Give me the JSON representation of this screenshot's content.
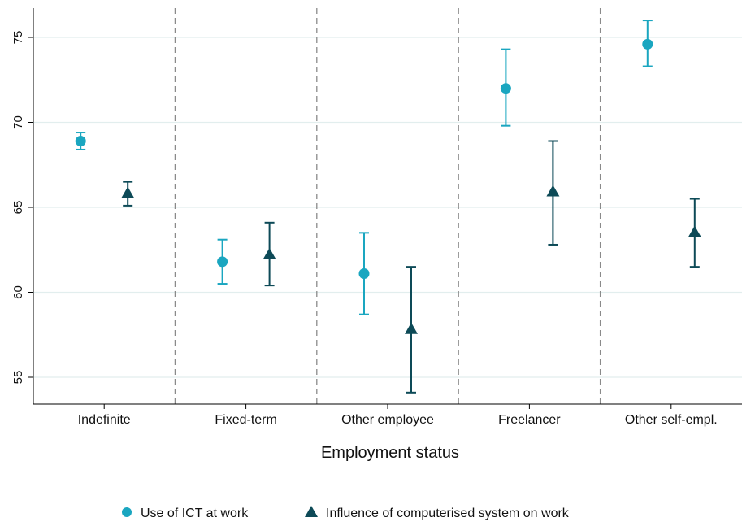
{
  "chart_data": {
    "type": "scatter",
    "title": "",
    "xlabel": "Employment status",
    "ylabel": "",
    "categories": [
      "Indefinite",
      "Fixed-term",
      "Other employee",
      "Freelancer",
      "Other self-empl."
    ],
    "ylim": [
      53,
      77.5
    ],
    "yticks": [
      55,
      60,
      65,
      70,
      75
    ],
    "grid": true,
    "legend_position": "bottom",
    "series": [
      {
        "name": "Use of ICT at work",
        "marker": "circle",
        "color": "#1aa6c0",
        "values": [
          68.9,
          61.8,
          61.1,
          72.0,
          74.6
        ],
        "ci_low": [
          68.4,
          60.5,
          58.7,
          69.8,
          73.3
        ],
        "ci_high": [
          69.4,
          63.1,
          63.5,
          74.3,
          76.0
        ]
      },
      {
        "name": "Influence of computerised system on work",
        "marker": "triangle",
        "color": "#0d4a57",
        "values": [
          65.8,
          62.2,
          57.8,
          65.9,
          63.5
        ],
        "ci_low": [
          65.1,
          60.4,
          54.1,
          62.8,
          61.5
        ],
        "ci_high": [
          66.5,
          64.1,
          61.5,
          68.9,
          65.5
        ]
      }
    ]
  }
}
